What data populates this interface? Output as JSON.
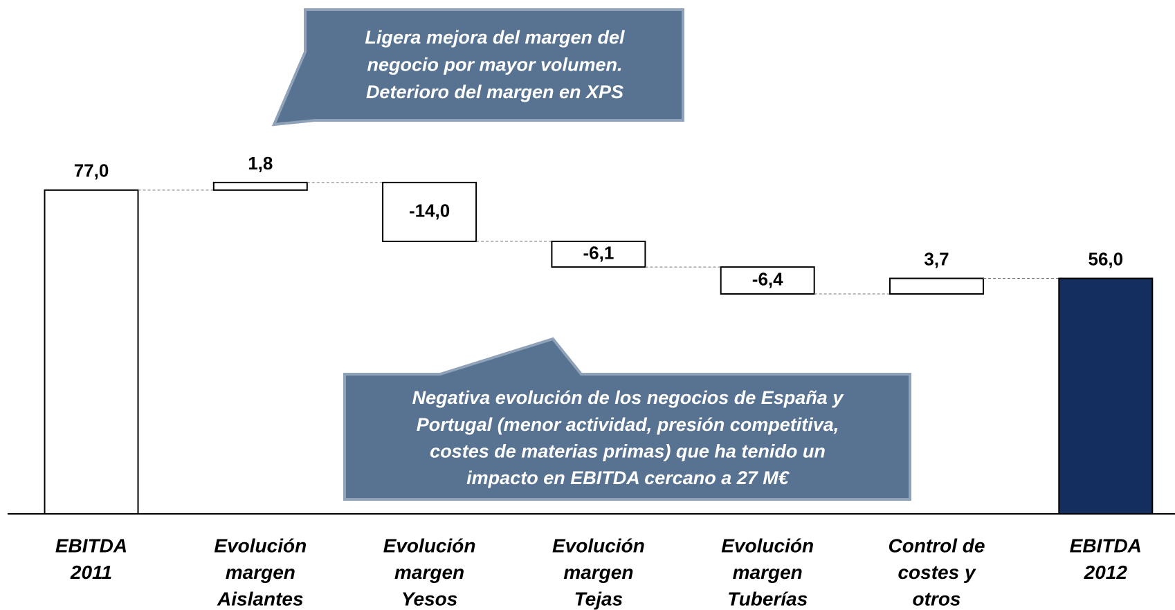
{
  "chart_data": {
    "type": "waterfall",
    "categories": [
      [
        "EBITDA",
        "2011"
      ],
      [
        "Evolución",
        "margen",
        "Aislantes"
      ],
      [
        "Evolución",
        "margen",
        "Yesos"
      ],
      [
        "Evolución",
        "margen",
        "Tejas"
      ],
      [
        "Evolución",
        "margen",
        "Tuberías"
      ],
      [
        "Control de",
        "costes y",
        "otros"
      ],
      [
        "EBITDA",
        "2012"
      ]
    ],
    "values": [
      77.0,
      1.8,
      -14.0,
      -6.1,
      -6.4,
      3.7,
      56.0
    ],
    "value_labels": [
      "77,0",
      "1,8",
      "-14,0",
      "-6,1",
      "-6,4",
      "3,7",
      "56,0"
    ],
    "colors": [
      "#ffffff",
      "#ffffff",
      "#ffffff",
      "#ffffff",
      "#ffffff",
      "#ffffff",
      "#142f5f"
    ],
    "ylim": [
      0,
      100
    ],
    "annotations": [
      {
        "text": [
          "Ligera mejora del margen del",
          "negocio por mayor volumen.",
          "Deterioro del  margen en XPS"
        ]
      },
      {
        "text": [
          "Negativa evolución de los negocios de España y",
          "Portugal (menor actividad, presión competitiva,",
          "costes de materias primas) que ha tenido un",
          "impacto en EBITDA cercano a 27 M€"
        ]
      }
    ]
  }
}
